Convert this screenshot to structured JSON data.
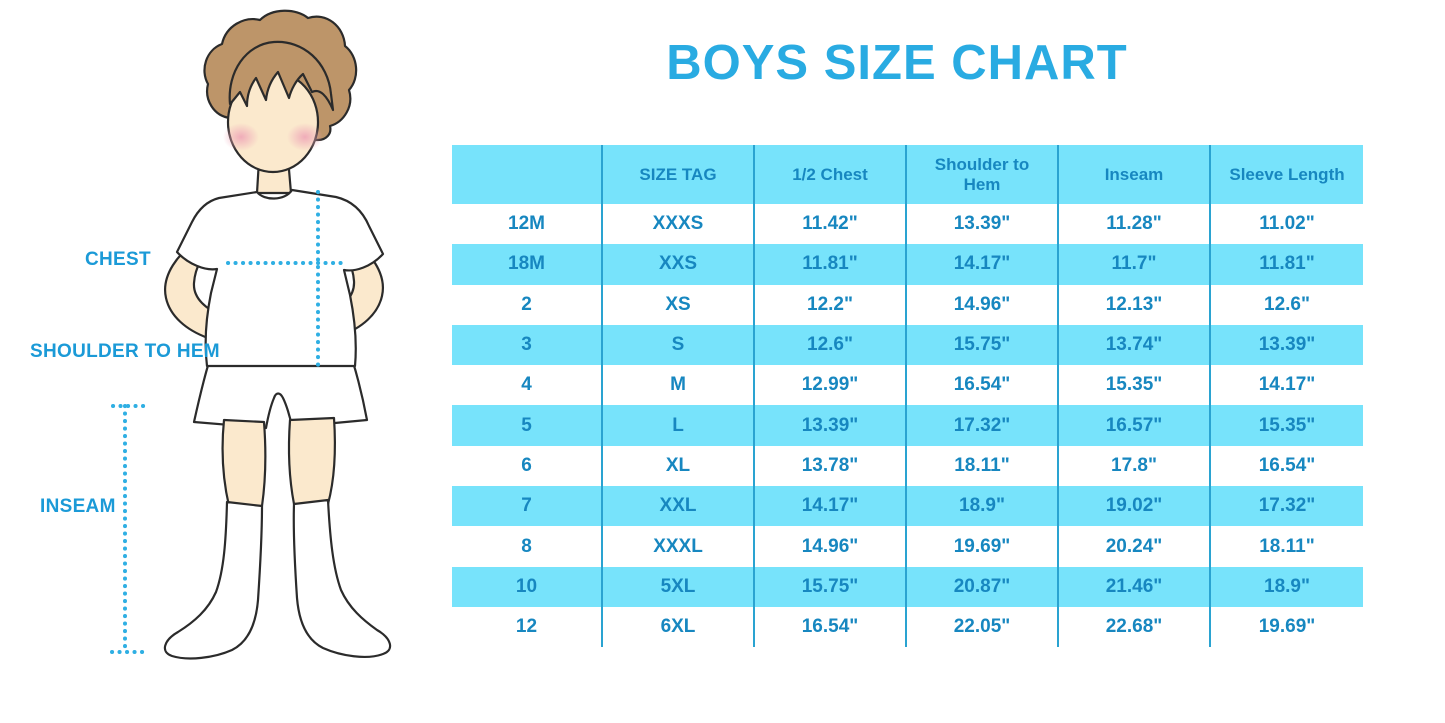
{
  "title": "BOYS SIZE CHART",
  "figure": {
    "chest_label": "CHEST",
    "shoulder_to_hem_label": "SHOULDER TO HEM",
    "inseam_label": "INSEAM"
  },
  "chart_data": {
    "type": "table",
    "title": "BOYS SIZE CHART",
    "columns": [
      "",
      "SIZE TAG",
      "1/2 Chest",
      "Shoulder to Hem",
      "Inseam",
      "Sleeve Length"
    ],
    "rows": [
      [
        "12M",
        "XXXS",
        "11.42\"",
        "13.39\"",
        "11.28\"",
        "11.02\""
      ],
      [
        "18M",
        "XXS",
        "11.81\"",
        "14.17\"",
        "11.7\"",
        "11.81\""
      ],
      [
        "2",
        "XS",
        "12.2\"",
        "14.96\"",
        "12.13\"",
        "12.6\""
      ],
      [
        "3",
        "S",
        "12.6\"",
        "15.75\"",
        "13.74\"",
        "13.39\""
      ],
      [
        "4",
        "M",
        "12.99\"",
        "16.54\"",
        "15.35\"",
        "14.17\""
      ],
      [
        "5",
        "L",
        "13.39\"",
        "17.32\"",
        "16.57\"",
        "15.35\""
      ],
      [
        "6",
        "XL",
        "13.78\"",
        "18.11\"",
        "17.8\"",
        "16.54\""
      ],
      [
        "7",
        "XXL",
        "14.17\"",
        "18.9\"",
        "19.02\"",
        "17.32\""
      ],
      [
        "8",
        "XXXL",
        "14.96\"",
        "19.69\"",
        "20.24\"",
        "18.11\""
      ],
      [
        "10",
        "5XL",
        "15.75\"",
        "20.87\"",
        "21.46\"",
        "18.9\""
      ],
      [
        "12",
        "6XL",
        "16.54\"",
        "22.05\"",
        "22.68\"",
        "19.69\""
      ]
    ],
    "layout": {
      "banding": "alternating rows, first data row white",
      "grid": "vertical column dividers only",
      "legend": "none"
    }
  },
  "colors": {
    "title_blue": "#29ABE2",
    "label_blue": "#1B9AD7",
    "band_cyan": "#77E3FB",
    "table_text": "#1787C0",
    "divider_blue": "#2AA3D1",
    "dotted_line": "#2FAFE3",
    "outline": "#2B2B2B",
    "skin": "#FBE9CD",
    "hair": "#BD9569",
    "blush": "#EFA9B8"
  }
}
